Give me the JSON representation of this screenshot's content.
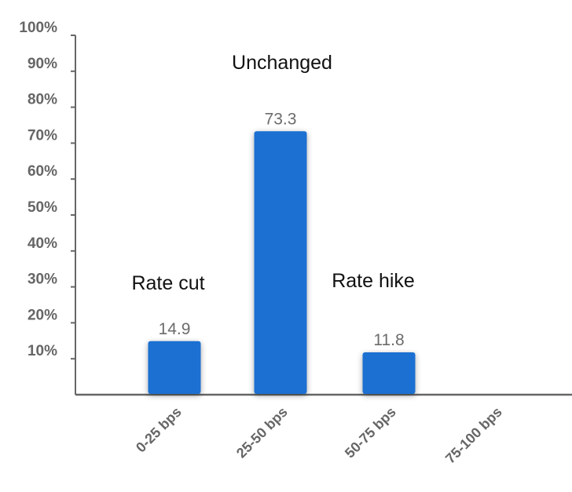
{
  "chart_data": {
    "type": "bar",
    "title": "",
    "xlabel": "",
    "ylabel": "",
    "categories": [
      "0-25 bps",
      "25-50 bps",
      "50-75 bps",
      "75-100 bps"
    ],
    "values": [
      14.9,
      73.3,
      11.8,
      null
    ],
    "value_labels": [
      "14.9",
      "73.3",
      "11.8",
      ""
    ],
    "ylim": [
      0,
      100
    ],
    "yticks": [
      "10%",
      "20%",
      "30%",
      "40%",
      "50%",
      "60%",
      "70%",
      "80%",
      "90%",
      "100%"
    ],
    "bar_color": "#1a6fd1",
    "grid": false,
    "legend": "none",
    "annotations": [
      {
        "text": "Rate cut",
        "category": "0-25 bps"
      },
      {
        "text": "Unchanged",
        "category": "25-50 bps"
      },
      {
        "text": "Rate hike",
        "category": "50-75 bps"
      }
    ]
  }
}
